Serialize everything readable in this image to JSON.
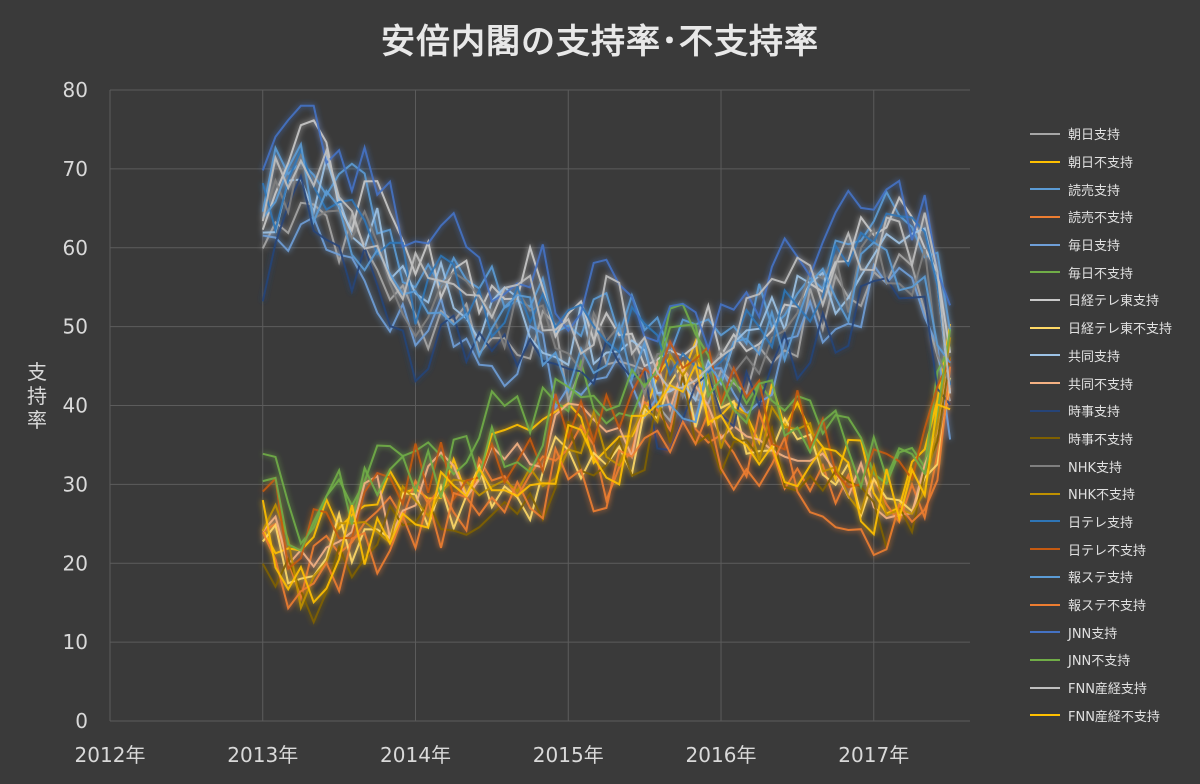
{
  "chart_data": {
    "type": "line",
    "title": "安倍内閣の支持率･不支持率",
    "xlabel": "",
    "ylabel": "支持率",
    "ylim": [
      0,
      80
    ],
    "yticks": [
      "0",
      "10",
      "20",
      "30",
      "40",
      "50",
      "60",
      "70",
      "80"
    ],
    "xlim": [
      2012,
      2017.63
    ],
    "xticks": [
      {
        "value": 2012,
        "label": "2012年"
      },
      {
        "value": 2013,
        "label": "2013年"
      },
      {
        "value": 2014,
        "label": "2014年"
      },
      {
        "value": 2015,
        "label": "2015年"
      },
      {
        "value": 2016,
        "label": "2016年"
      },
      {
        "value": 2017,
        "label": "2017年"
      }
    ],
    "grid": true,
    "legend_position": "right",
    "approval_anchors": [
      [
        2013.0,
        62
      ],
      [
        2013.25,
        70
      ],
      [
        2013.5,
        64
      ],
      [
        2013.75,
        60
      ],
      [
        2014.0,
        52
      ],
      [
        2014.25,
        55
      ],
      [
        2014.5,
        50
      ],
      [
        2014.75,
        52
      ],
      [
        2015.0,
        46
      ],
      [
        2015.25,
        50
      ],
      [
        2015.5,
        45
      ],
      [
        2015.75,
        42
      ],
      [
        2016.0,
        46
      ],
      [
        2016.25,
        47
      ],
      [
        2016.5,
        52
      ],
      [
        2016.75,
        55
      ],
      [
        2017.0,
        58
      ],
      [
        2017.2,
        59
      ],
      [
        2017.35,
        57
      ],
      [
        2017.5,
        43
      ]
    ],
    "disapproval_anchors": [
      [
        2013.0,
        26
      ],
      [
        2013.25,
        18
      ],
      [
        2013.5,
        24
      ],
      [
        2013.75,
        26
      ],
      [
        2014.0,
        28
      ],
      [
        2014.25,
        29
      ],
      [
        2014.5,
        32
      ],
      [
        2014.75,
        31
      ],
      [
        2015.0,
        37
      ],
      [
        2015.25,
        34
      ],
      [
        2015.5,
        38
      ],
      [
        2015.75,
        44
      ],
      [
        2016.0,
        38
      ],
      [
        2016.25,
        37
      ],
      [
        2016.5,
        35
      ],
      [
        2016.75,
        32
      ],
      [
        2017.0,
        29
      ],
      [
        2017.2,
        28
      ],
      [
        2017.35,
        31
      ],
      [
        2017.5,
        45
      ]
    ],
    "series": [
      {
        "name": "朝日支持",
        "kind": "approval",
        "color": "#a6a6a6",
        "offset": -2
      },
      {
        "name": "朝日不支持",
        "kind": "disapproval",
        "color": "#ffc000",
        "offset": 2
      },
      {
        "name": "読売支持",
        "kind": "approval",
        "color": "#5b9bd5",
        "offset": 5
      },
      {
        "name": "読売不支持",
        "kind": "disapproval",
        "color": "#ed7d31",
        "offset": -2
      },
      {
        "name": "毎日支持",
        "kind": "approval",
        "color": "#6f9fd8",
        "offset": -4
      },
      {
        "name": "毎日不支持",
        "kind": "disapproval",
        "color": "#70ad47",
        "offset": 6
      },
      {
        "name": "日経テレ東支持",
        "kind": "approval",
        "color": "#c9c9c9",
        "offset": 4
      },
      {
        "name": "日経テレ東不支持",
        "kind": "disapproval",
        "color": "#ffd966",
        "offset": -1
      },
      {
        "name": "共同支持",
        "kind": "approval",
        "color": "#9dc3e6",
        "offset": 1
      },
      {
        "name": "共同不支持",
        "kind": "disapproval",
        "color": "#f4b183",
        "offset": 1
      },
      {
        "name": "時事支持",
        "kind": "approval",
        "color": "#264478",
        "offset": -5
      },
      {
        "name": "時事不支持",
        "kind": "disapproval",
        "color": "#7f6000",
        "offset": -3
      },
      {
        "name": "NHK支持",
        "kind": "approval",
        "color": "#7f7f7f",
        "offset": 0
      },
      {
        "name": "NHK不支持",
        "kind": "disapproval",
        "color": "#bf9000",
        "offset": 0
      },
      {
        "name": "日テレ支持",
        "kind": "approval",
        "color": "#2e75b6",
        "offset": 2
      },
      {
        "name": "日テレ不支持",
        "kind": "disapproval",
        "color": "#c55a11",
        "offset": 3
      },
      {
        "name": "報ステ支持",
        "kind": "approval",
        "color": "#5b9bd5",
        "offset": -1
      },
      {
        "name": "報ステ不支持",
        "kind": "disapproval",
        "color": "#ed7d31",
        "offset": -4
      },
      {
        "name": "JNN支持",
        "kind": "approval",
        "color": "#4472c4",
        "offset": 7
      },
      {
        "name": "JNN不支持",
        "kind": "disapproval",
        "color": "#70ad47",
        "offset": 4
      },
      {
        "name": "FNN産経支持",
        "kind": "approval",
        "color": "#bfbfbf",
        "offset": 3
      },
      {
        "name": "FNN産経不支持",
        "kind": "disapproval",
        "color": "#ffc000",
        "offset": -1
      }
    ]
  }
}
